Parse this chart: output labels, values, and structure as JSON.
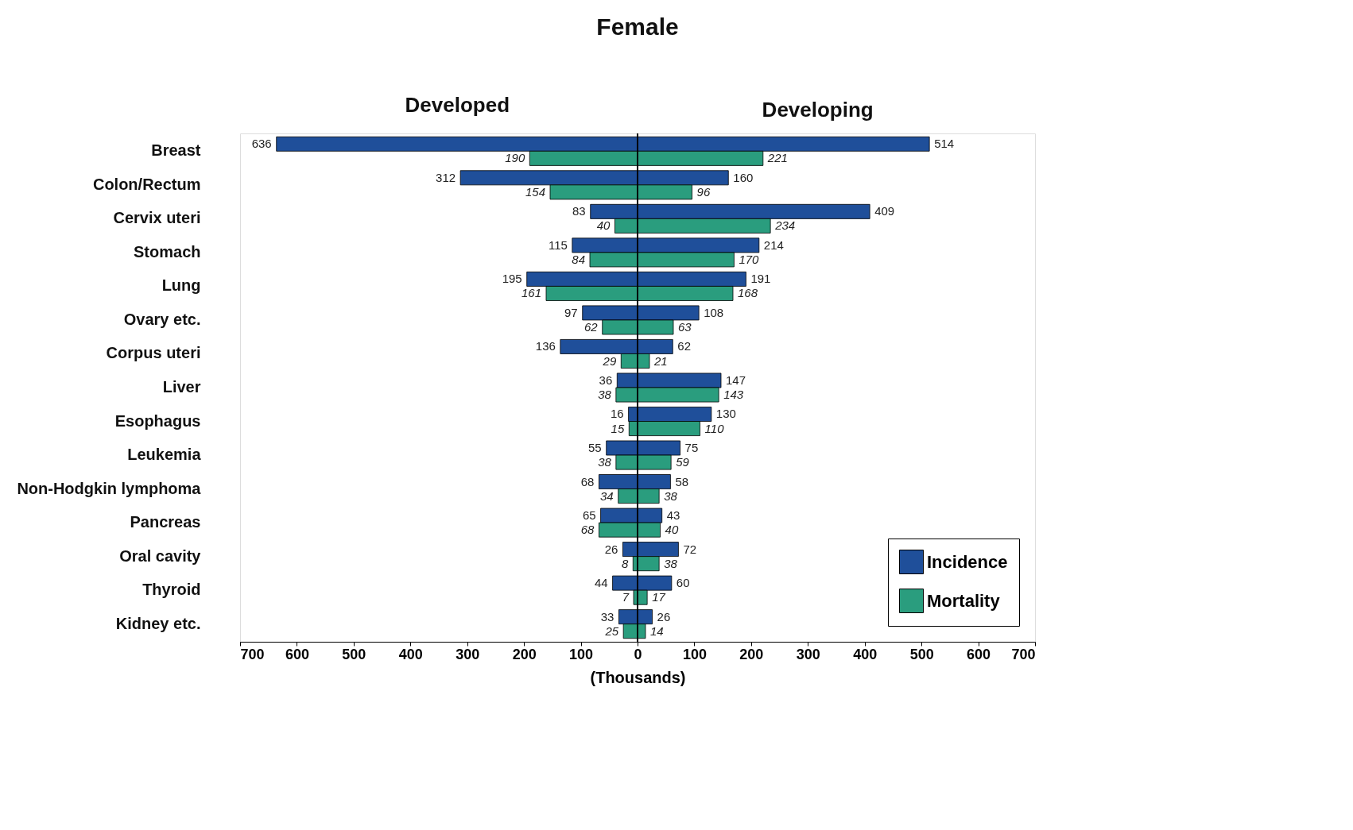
{
  "chart_data": {
    "type": "bar",
    "orientation": "horizontal",
    "title": "Female",
    "xlabel": "(Thousands)",
    "annotations": [
      "Developed",
      "Developing"
    ],
    "categories": [
      "Breast",
      "Colon/Rectum",
      "Cervix uteri",
      "Stomach",
      "Lung",
      "Ovary etc.",
      "Corpus uteri",
      "Liver",
      "Esophagus",
      "Leukemia",
      "Non-Hodgkin lymphoma",
      "Pancreas",
      "Oral cavity",
      "Thyroid",
      "Kidney etc."
    ],
    "series": [
      {
        "color": "#1f4f9a",
        "values": [
          636,
          312,
          83,
          115,
          195,
          97,
          136,
          36,
          16,
          55,
          68,
          65,
          26,
          44,
          33
        ],
        "base": [
          -636,
          -312,
          -83,
          -115,
          -195,
          -97,
          -136,
          -36,
          -16,
          -55,
          -68,
          -65,
          -26,
          -44,
          -33
        ]
      },
      {
        "color": "#2a9d7e",
        "values": [
          190,
          154,
          40,
          84,
          161,
          62,
          29,
          38,
          15,
          38,
          34,
          68,
          8,
          7,
          25
        ],
        "base": [
          -190,
          -154,
          -40,
          -84,
          -161,
          -62,
          -29,
          -38,
          -15,
          -38,
          -34,
          -68,
          -8,
          -7,
          -25
        ]
      },
      {
        "name": "Incidence",
        "color": "#1f4f9a",
        "values": [
          514,
          160,
          409,
          214,
          191,
          108,
          62,
          147,
          130,
          75,
          58,
          43,
          72,
          60,
          26
        ]
      },
      {
        "name": "Mortality",
        "color": "#2a9d7e",
        "values": [
          221,
          96,
          234,
          170,
          168,
          63,
          21,
          143,
          110,
          59,
          38,
          40,
          38,
          17,
          14
        ]
      }
    ],
    "data_labels": true,
    "xlim": [
      -700,
      700
    ],
    "xticks": [
      {
        "value": -700,
        "label": "700"
      },
      {
        "value": -600,
        "label": "600"
      },
      {
        "value": -500,
        "label": "500"
      },
      {
        "value": -400,
        "label": "400"
      },
      {
        "value": -300,
        "label": "300"
      },
      {
        "value": -200,
        "label": "200"
      },
      {
        "value": -100,
        "label": "100"
      },
      0,
      100,
      200,
      300,
      400,
      500,
      600,
      700
    ],
    "ref_lines": [
      {
        "axis": "x",
        "value": 0,
        "color": "#000000"
      }
    ],
    "grid": false,
    "legend": "bottom right"
  }
}
